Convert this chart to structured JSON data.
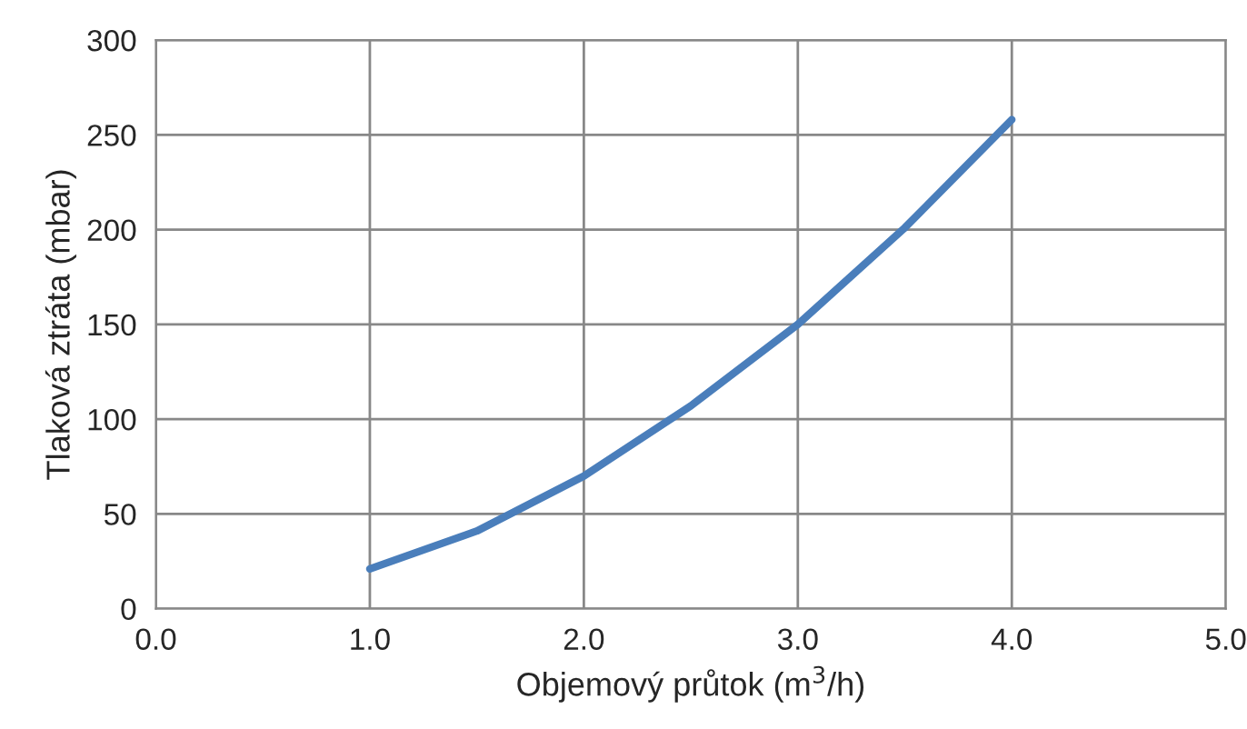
{
  "chart_data": {
    "type": "line",
    "xlabel": "Objemový průtok (m$^{3}$/h)",
    "ylabel": "Tlaková ztráta (mbar)",
    "x": [
      1.0,
      1.5,
      2.0,
      2.5,
      3.0,
      3.5,
      4.0
    ],
    "series": [
      {
        "color": "#4a7ebb",
        "values": [
          21,
          41,
          70,
          107,
          150,
          201,
          258
        ]
      }
    ],
    "xlim": [
      0,
      5
    ],
    "xticks": [
      {
        "value": 0,
        "label": "0.0"
      },
      {
        "value": 1,
        "label": "1.0"
      },
      {
        "value": 2,
        "label": "2.0"
      },
      {
        "value": 3,
        "label": "3.0"
      },
      {
        "value": 4,
        "label": "4.0"
      },
      {
        "value": 5,
        "label": "5.0"
      }
    ],
    "ylim": [
      0,
      300
    ],
    "yticks": [
      0,
      50,
      100,
      150,
      200,
      250,
      300
    ],
    "grid": true,
    "legend": false,
    "marker": "none",
    "line_style": "solid"
  }
}
